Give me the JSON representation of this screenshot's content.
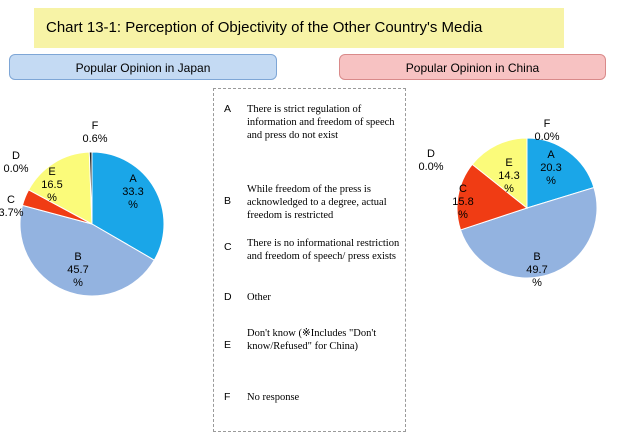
{
  "title": "Chart 13-1: Perception of Objectivity of the Other Country's Media",
  "headers": {
    "japan": "Popular Opinion in Japan",
    "china": "Popular Opinion in China"
  },
  "legend": [
    {
      "letter": "A",
      "text": "There is strict regulation of information and freedom of speech and press do not exist"
    },
    {
      "letter": "B",
      "text": "While freedom of the press is acknowledged to a degree, actual freedom is restricted"
    },
    {
      "letter": "C",
      "text": "There is no informational restriction and freedom of speech/ press exists"
    },
    {
      "letter": "D",
      "text": "Other"
    },
    {
      "letter": "E",
      "text": "Don't know (※Includes \"Don't know/Refused\" for China)"
    },
    {
      "letter": "F",
      "text": "No response"
    }
  ],
  "colors": {
    "A": "#1aa6e8",
    "B": "#93b3e0",
    "C": "#f03c14",
    "D": "#e8d94a",
    "E": "#fbfb7a",
    "F": "#2b2b2b"
  },
  "chart_data": [
    {
      "type": "pie",
      "title": "Popular Opinion in Japan",
      "categories": [
        "A",
        "B",
        "C",
        "D",
        "E",
        "F"
      ],
      "values": [
        33.3,
        45.7,
        3.7,
        0.0,
        16.5,
        0.6
      ],
      "labels": [
        "A\n33.3\n%",
        "B\n45.7\n%",
        "C\n3.7%",
        "D\n0.0%",
        "E\n16.5\n%",
        "F\n0.6%"
      ]
    },
    {
      "type": "pie",
      "title": "Popular Opinion in China",
      "categories": [
        "A",
        "B",
        "C",
        "D",
        "E",
        "F"
      ],
      "values": [
        20.3,
        49.7,
        15.8,
        0.0,
        14.3,
        0.0
      ],
      "labels": [
        "A\n20.3\n%",
        "B\n49.7\n%",
        "C\n15.8\n%",
        "D\n0.0%",
        "E\n14.3\n%",
        "F\n0.0%"
      ]
    }
  ]
}
